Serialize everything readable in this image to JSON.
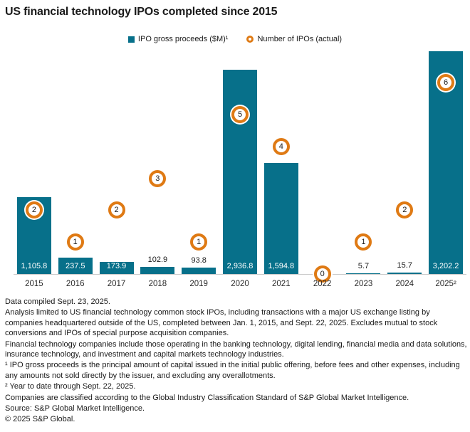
{
  "title": "US financial technology IPOs completed since 2015",
  "legend": [
    {
      "label": "IPO gross proceeds ($M)¹",
      "marker": "square",
      "color": "#07708a"
    },
    {
      "label": "Number of IPOs (actual)",
      "marker": "ring",
      "color": "#df7a14"
    }
  ],
  "colors": {
    "bar": "#07708a",
    "badge_ring": "#df7a14",
    "axis_line": "#c9c9c9",
    "text": "#1a1a1a"
  },
  "chart_data": {
    "type": "bar",
    "title": "US financial technology IPOs completed since 2015",
    "categories": [
      "2015",
      "2016",
      "2017",
      "2018",
      "2019",
      "2020",
      "2021",
      "2022",
      "2023",
      "2024",
      "2025²"
    ],
    "series": [
      {
        "name": "IPO gross proceeds ($M)",
        "values": [
          1105.8,
          237.5,
          173.9,
          102.9,
          93.8,
          2936.8,
          1594.8,
          0,
          5.7,
          15.7,
          3202.2
        ],
        "labels": [
          "1,105.8",
          "237.5",
          "173.9",
          "102.9",
          "93.8",
          "2,936.8",
          "1,594.8",
          "",
          "5.7",
          "15.7",
          "3,202.2"
        ]
      },
      {
        "name": "Number of IPOs (actual)",
        "values": [
          2,
          1,
          2,
          3,
          1,
          5,
          4,
          0,
          1,
          2,
          6
        ]
      }
    ],
    "xlabel": "",
    "ylabel": "",
    "ylim": [
      0,
      3250
    ],
    "secondary_ylim": [
      0,
      7
    ],
    "grid": false,
    "legend_position": "top-center"
  },
  "footer": {
    "lines": [
      "Data compiled Sept. 23, 2025.",
      "Analysis limited to US financial technology common stock IPOs, including transactions with a major US exchange listing by companies headquartered outside of the US, completed between Jan. 1, 2015, and Sept. 22, 2025. Excludes mutual to stock conversions and IPOs of special purpose acquisition companies.",
      "Financial technology companies include those operating in the banking technology, digital lending, financial media and data solutions, insurance technology, and investment and capital markets technology industries.",
      "¹ IPO gross proceeds is the principal amount of capital issued in the initial public offering, before fees and other expenses, including any amounts not sold directly by the issuer, and excluding any overallotments.",
      "² Year to date through Sept. 22, 2025.",
      "Companies are classified according to the Global Industry Classification Standard of S&P Global Market Intelligence.",
      "Source: S&P Global Market Intelligence.",
      "© 2025 S&P Global."
    ]
  }
}
